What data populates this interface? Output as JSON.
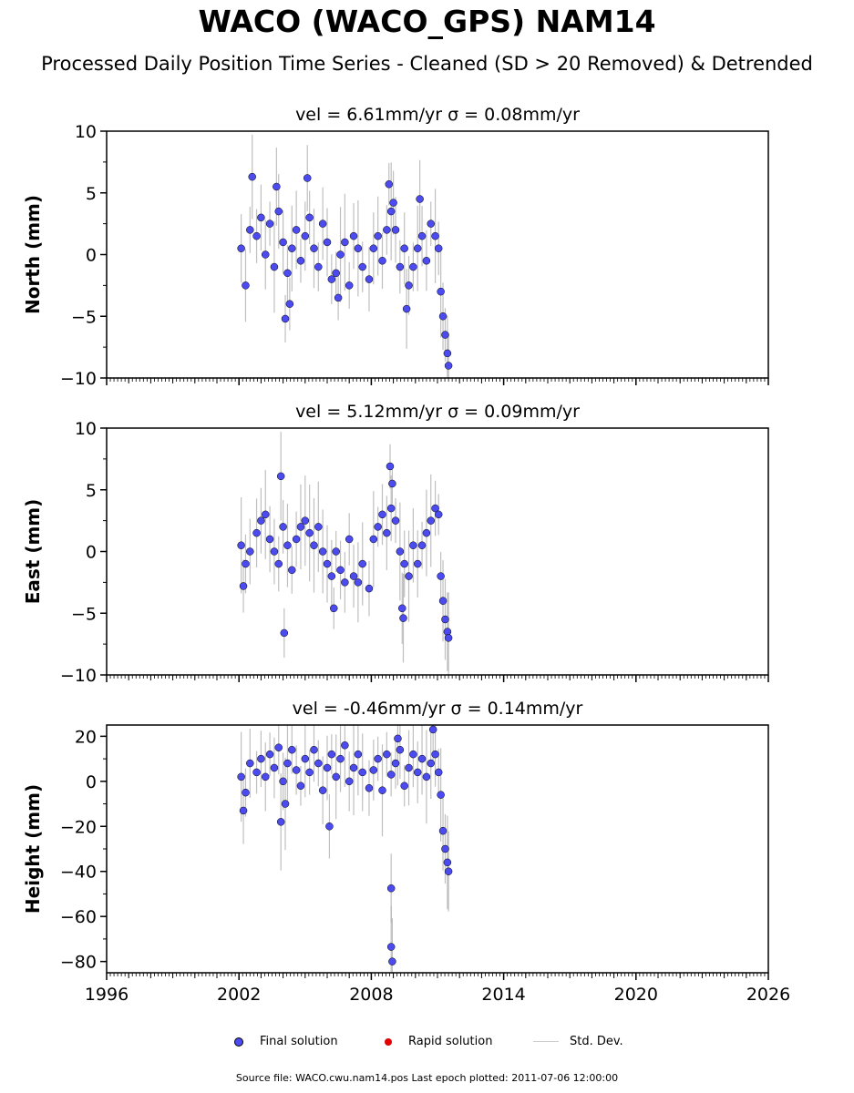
{
  "title": "WACO (WACO_GPS) NAM14",
  "subtitle": "Processed Daily Position Time Series - Cleaned (SD > 20 Removed) & Detrended",
  "legend": {
    "final_label": "Final solution",
    "rapid_label": "Rapid solution",
    "std_label": "Std. Dev."
  },
  "colors": {
    "final": "#4b4bf0",
    "rapid": "#e00000",
    "std": "#b0b0b0"
  },
  "source_text": "Source file: WACO.cwu.nam14.pos  Last epoch plotted: 2011-07-06 12:00:00",
  "chart_data": [
    {
      "type": "scatter",
      "panel": "north",
      "title": "vel = 6.61mm/yr   σ = 0.08mm/yr",
      "ylabel": "North (mm)",
      "xlim": [
        1996,
        2026
      ],
      "ylim": [
        -10,
        10
      ],
      "xticks": [
        1996,
        2002,
        2008,
        2014,
        2020,
        2026
      ],
      "yticks": [
        -10,
        -5,
        0,
        5,
        10
      ],
      "ytick_labels": [
        "−10",
        "−5",
        "0",
        "5",
        "10"
      ],
      "grid": false,
      "series": [
        {
          "name": "Final solution",
          "x": [
            2002.1,
            2002.3,
            2002.5,
            2002.8,
            2003.0,
            2003.2,
            2003.4,
            2003.6,
            2003.8,
            2004.0,
            2004.2,
            2004.4,
            2004.6,
            2004.8,
            2005.0,
            2005.2,
            2005.4,
            2005.6,
            2005.8,
            2006.0,
            2006.2,
            2006.4,
            2006.6,
            2006.8,
            2007.0,
            2007.2,
            2007.4,
            2007.6,
            2007.9,
            2008.1,
            2008.3,
            2008.5,
            2008.7,
            2008.9,
            2009.1,
            2009.3,
            2009.5,
            2009.7,
            2009.9,
            2010.1,
            2010.3,
            2010.5,
            2010.7,
            2010.9,
            2011.05,
            2011.15,
            2011.25,
            2011.35,
            2011.45,
            2011.5,
            2002.6,
            2003.7,
            2004.1,
            2004.3,
            2005.1,
            2006.5,
            2008.8,
            2009.0,
            2009.6,
            2010.2
          ],
          "y": [
            0.5,
            -2.5,
            2.0,
            1.5,
            3.0,
            0.0,
            2.5,
            -1.0,
            3.5,
            1.0,
            -1.5,
            0.5,
            2.0,
            -0.5,
            1.5,
            3.0,
            0.5,
            -1.0,
            2.5,
            1.0,
            -2.0,
            -1.5,
            0.0,
            1.0,
            -2.5,
            1.5,
            0.5,
            -1.0,
            -2.0,
            0.5,
            1.5,
            -0.5,
            2.0,
            3.5,
            2.0,
            -1.0,
            0.5,
            -2.5,
            -1.0,
            0.5,
            1.5,
            -0.5,
            2.5,
            1.5,
            0.5,
            -3.0,
            -5.0,
            -6.5,
            -8.0,
            -9.0,
            6.3,
            5.5,
            -5.2,
            -4.0,
            6.2,
            -3.5,
            5.7,
            4.2,
            -4.4,
            4.5
          ]
        }
      ]
    },
    {
      "type": "scatter",
      "panel": "east",
      "title": "vel = 5.12mm/yr   σ = 0.09mm/yr",
      "ylabel": "East (mm)",
      "xlim": [
        1996,
        2026
      ],
      "ylim": [
        -10,
        10
      ],
      "xticks": [
        1996,
        2002,
        2008,
        2014,
        2020,
        2026
      ],
      "yticks": [
        -10,
        -5,
        0,
        5,
        10
      ],
      "ytick_labels": [
        "−10",
        "−5",
        "0",
        "5",
        "10"
      ],
      "grid": false,
      "series": [
        {
          "name": "Final solution",
          "x": [
            2002.1,
            2002.3,
            2002.5,
            2002.8,
            2003.0,
            2003.2,
            2003.4,
            2003.6,
            2003.8,
            2004.0,
            2004.2,
            2004.4,
            2004.6,
            2004.8,
            2005.0,
            2005.2,
            2005.4,
            2005.6,
            2005.8,
            2006.0,
            2006.2,
            2006.4,
            2006.6,
            2006.8,
            2007.0,
            2007.2,
            2007.4,
            2007.6,
            2007.9,
            2008.1,
            2008.3,
            2008.5,
            2008.7,
            2008.9,
            2009.1,
            2009.3,
            2009.5,
            2009.7,
            2009.9,
            2010.1,
            2010.3,
            2010.5,
            2010.7,
            2010.9,
            2011.05,
            2011.15,
            2011.25,
            2011.35,
            2011.45,
            2011.5,
            2002.2,
            2003.9,
            2004.05,
            2006.3,
            2008.85,
            2008.95,
            2009.4,
            2009.45
          ],
          "y": [
            0.5,
            -1.0,
            0.0,
            1.5,
            2.5,
            3.0,
            1.0,
            0.0,
            -1.0,
            2.0,
            0.5,
            -1.5,
            1.0,
            2.0,
            2.5,
            1.5,
            0.5,
            2.0,
            0.0,
            -1.0,
            -2.0,
            0.0,
            -1.5,
            -2.5,
            1.0,
            -2.0,
            -2.5,
            -1.0,
            -3.0,
            1.0,
            2.0,
            3.0,
            1.5,
            3.5,
            2.5,
            0.0,
            -1.0,
            -2.0,
            0.5,
            -1.0,
            0.5,
            1.5,
            2.5,
            3.5,
            3.0,
            -2.0,
            -4.0,
            -5.5,
            -6.5,
            -7.0,
            -2.8,
            6.1,
            -6.6,
            -4.6,
            6.9,
            5.5,
            -4.6,
            -5.4
          ]
        }
      ]
    },
    {
      "type": "scatter",
      "panel": "height",
      "title": "vel = -0.46mm/yr   σ = 0.14mm/yr",
      "ylabel": "Height (mm)",
      "xlim": [
        1996,
        2026
      ],
      "ylim": [
        -85,
        25
      ],
      "xticks": [
        1996,
        2002,
        2008,
        2014,
        2020,
        2026
      ],
      "xtick_labels": [
        "1996",
        "2002",
        "2008",
        "2014",
        "2020",
        "2026"
      ],
      "yticks": [
        -80,
        -60,
        -40,
        -20,
        0,
        20
      ],
      "ytick_labels": [
        "−80",
        "−60",
        "−40",
        "−20",
        "0",
        "20"
      ],
      "grid": false,
      "series": [
        {
          "name": "Final solution",
          "x": [
            2002.1,
            2002.3,
            2002.5,
            2002.8,
            2003.0,
            2003.2,
            2003.4,
            2003.6,
            2003.8,
            2004.0,
            2004.2,
            2004.4,
            2004.6,
            2004.8,
            2005.0,
            2005.2,
            2005.4,
            2005.6,
            2005.8,
            2006.0,
            2006.2,
            2006.4,
            2006.6,
            2006.8,
            2007.0,
            2007.2,
            2007.4,
            2007.6,
            2007.9,
            2008.1,
            2008.3,
            2008.5,
            2008.7,
            2008.9,
            2009.1,
            2009.3,
            2009.5,
            2009.7,
            2009.9,
            2010.1,
            2010.3,
            2010.5,
            2010.7,
            2010.9,
            2011.05,
            2011.15,
            2011.25,
            2011.35,
            2011.45,
            2011.5,
            2002.2,
            2003.9,
            2004.1,
            2006.1,
            2008.9,
            2008.9,
            2008.95,
            2009.2,
            2010.8
          ],
          "y": [
            2.0,
            -5.0,
            8.0,
            4.0,
            10.0,
            2.0,
            12.0,
            6.0,
            15.0,
            0.0,
            8.0,
            14.0,
            5.0,
            -2.0,
            10.0,
            4.0,
            14.0,
            8.0,
            -4.0,
            6.0,
            12.0,
            2.0,
            10.0,
            16.0,
            0.0,
            6.0,
            12.0,
            4.0,
            -3.0,
            5.0,
            10.0,
            -4.0,
            12.0,
            3.0,
            8.0,
            14.0,
            -2.0,
            6.0,
            12.0,
            4.0,
            10.0,
            2.0,
            8.0,
            12.0,
            4.0,
            -6.0,
            -22.0,
            -30.0,
            -36.0,
            -40.0,
            -13.0,
            -18.0,
            -10.0,
            -20.0,
            -47.5,
            -73.5,
            -80.0,
            19.0,
            23.0
          ]
        }
      ]
    }
  ]
}
